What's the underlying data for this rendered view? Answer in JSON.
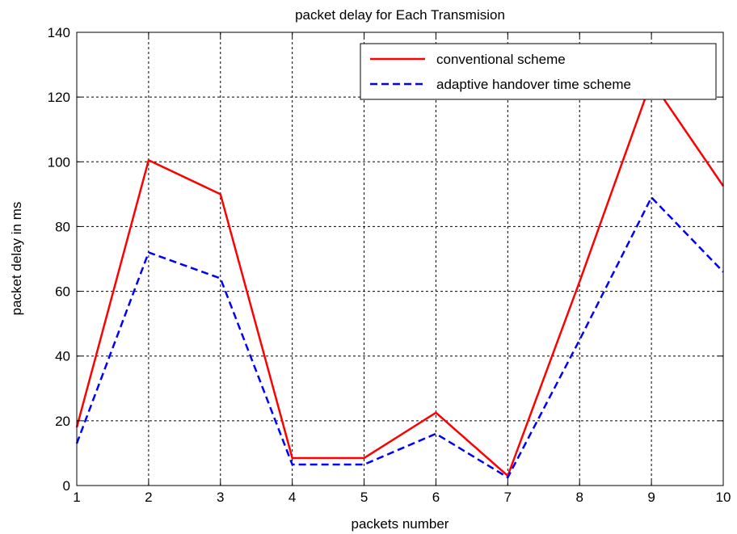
{
  "chart_data": {
    "type": "line",
    "title": "packet delay for Each Transmision",
    "xlabel": "packets number",
    "ylabel": "packet delay in ms",
    "xlim": [
      1,
      10
    ],
    "ylim": [
      0,
      140
    ],
    "xticks": [
      1,
      2,
      3,
      4,
      5,
      6,
      7,
      8,
      9,
      10
    ],
    "yticks": [
      0,
      20,
      40,
      60,
      80,
      100,
      120,
      140
    ],
    "grid": true,
    "legend_position": "top-right",
    "x": [
      1,
      2,
      3,
      4,
      5,
      6,
      7,
      8,
      9,
      10
    ],
    "series": [
      {
        "name": "conventional scheme",
        "color": "#ff0000",
        "style": "solid",
        "values": [
          18,
          100.5,
          90,
          8.5,
          8.5,
          22.5,
          3,
          63,
          125,
          92.5
        ]
      },
      {
        "name": "adaptive handover time scheme",
        "color": "#0000ff",
        "style": "dashed",
        "values": [
          13,
          72,
          64,
          6.5,
          6.5,
          16,
          2.5,
          45,
          89,
          66
        ]
      }
    ]
  }
}
